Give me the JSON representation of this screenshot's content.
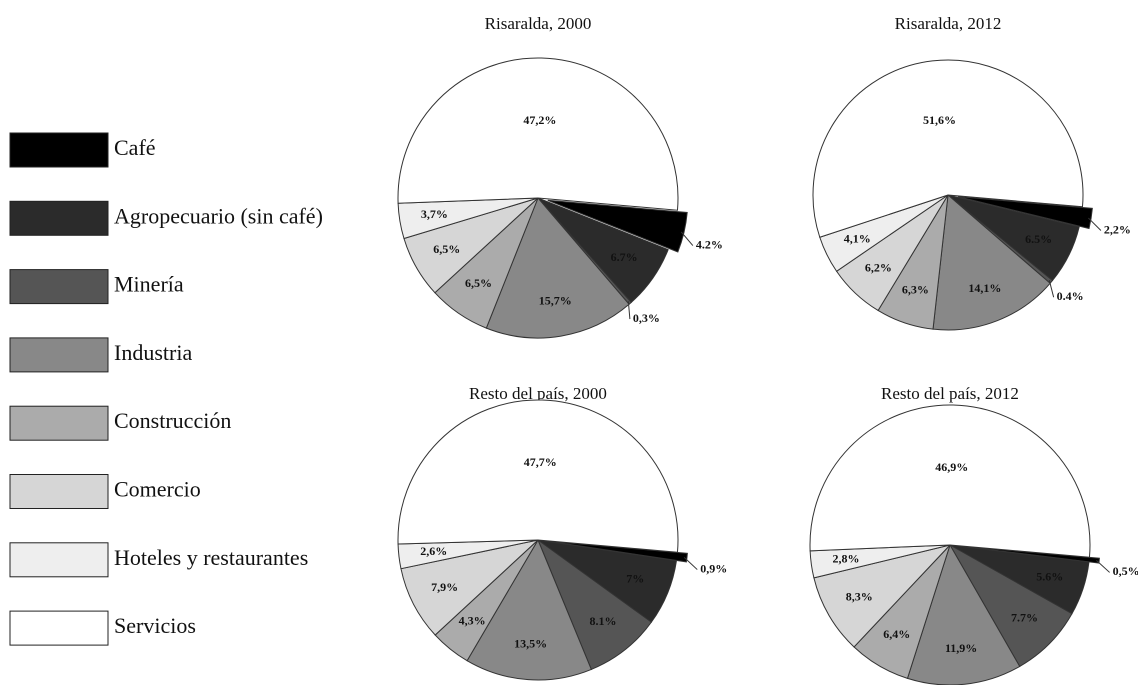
{
  "legend": {
    "categories": [
      "Café",
      "Agropecuario (sin café)",
      "Minería",
      "Industria",
      "Construcción",
      "Comercio",
      "Hoteles y restaurantes",
      "Servicios"
    ],
    "colors": [
      "#000000",
      "#2b2b2b",
      "#555555",
      "#888888",
      "#ababab",
      "#d6d6d6",
      "#eeeeee",
      "#ffffff"
    ]
  },
  "chart_data": [
    {
      "type": "pie",
      "title": "Risaralda, 2000",
      "values": [
        4.2,
        6.7,
        0.3,
        15.7,
        6.5,
        6.5,
        3.7,
        47.2
      ],
      "value_labels": [
        "4.2%",
        "6.7%",
        "0,3%",
        "15,7%",
        "6,5%",
        "6,5%",
        "3,7%",
        "47,2%"
      ]
    },
    {
      "type": "pie",
      "title": "Risaralda, 2012",
      "values": [
        2.2,
        6.5,
        0.4,
        14.1,
        6.3,
        6.2,
        4.1,
        51.6
      ],
      "value_labels": [
        "2,2%",
        "6.5%",
        "0.4%",
        "14,1%",
        "6,3%",
        "6,2%",
        "4,1%",
        "51,6%"
      ]
    },
    {
      "type": "pie",
      "title": "Resto del país, 2000",
      "values": [
        0.9,
        7,
        8.1,
        13.5,
        4.3,
        7.9,
        2.6,
        47.7
      ],
      "value_labels": [
        "0,9%",
        "7%",
        "8.1%",
        "13,5%",
        "4,3%",
        "7,9%",
        "2,6%",
        "47,7%"
      ]
    },
    {
      "type": "pie",
      "title": "Resto del país, 2012",
      "values": [
        0.5,
        5.6,
        7.7,
        11.9,
        6.4,
        8.3,
        2.8,
        46.9
      ],
      "value_labels": [
        "0,5%",
        "5.6%",
        "7.7%",
        "11,9%",
        "6,4%",
        "8,3%",
        "2,8%",
        "46,9%"
      ]
    }
  ]
}
